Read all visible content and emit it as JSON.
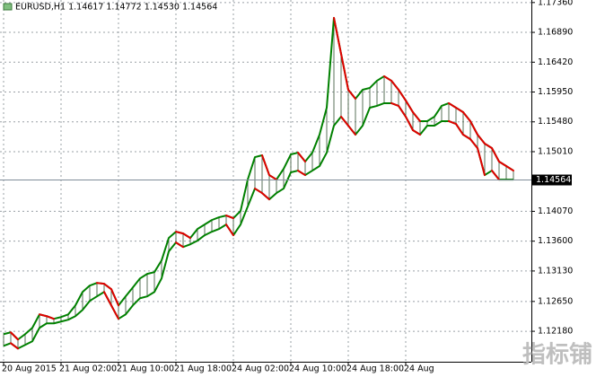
{
  "chart_data": {
    "type": "line",
    "title": "EURUSD,H1  1.14617 1.14772 1.14530 1.14564",
    "categories": [
      "20 Aug 2015",
      null,
      null,
      null,
      null,
      null,
      null,
      null,
      "21 Aug 02:00",
      null,
      null,
      null,
      null,
      null,
      null,
      null,
      "21 Aug 10:00",
      null,
      null,
      null,
      null,
      null,
      null,
      null,
      "21 Aug 18:00",
      null,
      null,
      null,
      null,
      null,
      null,
      null,
      "24 Aug 02:00",
      null,
      null,
      null,
      null,
      null,
      null,
      null,
      "24 Aug 10:00",
      null,
      null,
      null,
      null,
      null,
      null,
      null,
      "24 Aug 18:00",
      null,
      null,
      null,
      null,
      null,
      null,
      null,
      "24 Aug",
      null,
      null,
      null,
      null,
      null,
      null,
      null,
      null,
      null,
      null,
      null,
      null,
      null,
      null,
      null
    ],
    "series": [
      {
        "color": "#008000",
        "values": [
          1.12135,
          1.12163,
          1.1205,
          1.12135,
          1.12234,
          1.12446,
          1.12418,
          1.12376,
          1.12404,
          1.12446,
          1.12588,
          1.128,
          1.129,
          1.12942,
          1.12928,
          1.12843,
          1.12588,
          1.1273,
          1.12871,
          1.13013,
          1.13084,
          1.13112,
          1.13296,
          1.1365,
          1.13749,
          1.13721,
          1.1365,
          1.13792,
          1.13862,
          1.13933,
          1.13976,
          1.14004,
          1.13962,
          1.14075,
          1.1457,
          1.14924,
          1.14953,
          1.14641,
          1.1457,
          1.1474,
          1.14967,
          1.14995,
          1.14854,
          1.14995,
          1.15278,
          1.15703,
          1.17119,
          1.16553,
          1.15986,
          1.15845,
          1.15986,
          1.16015,
          1.16128,
          1.16199,
          1.16128,
          1.15986,
          1.15817,
          1.15632,
          1.15491,
          1.15491,
          1.15562,
          1.15732,
          1.15774,
          1.15703,
          1.15632,
          1.15491,
          1.15278,
          1.15137,
          1.15066,
          1.14854,
          1.14783,
          1.14712
        ]
      },
      {
        "color": "#008000",
        "values": [
          1.11951,
          1.11993,
          1.11908,
          1.11965,
          1.12022,
          1.12234,
          1.12305,
          1.12305,
          1.12333,
          1.12362,
          1.12418,
          1.12517,
          1.12659,
          1.1273,
          1.128,
          1.12588,
          1.12376,
          1.12446,
          1.12588,
          1.12701,
          1.1273,
          1.128,
          1.13013,
          1.13438,
          1.13579,
          1.13508,
          1.13551,
          1.13608,
          1.13693,
          1.13749,
          1.13792,
          1.13862,
          1.13693,
          1.13862,
          1.14146,
          1.14429,
          1.14358,
          1.14259,
          1.14358,
          1.14429,
          1.14684,
          1.14712,
          1.14641,
          1.14712,
          1.14783,
          1.14995,
          1.1542,
          1.15562,
          1.1542,
          1.15278,
          1.1542,
          1.15703,
          1.15732,
          1.15774,
          1.15774,
          1.15732,
          1.15562,
          1.15349,
          1.15278,
          1.1542,
          1.1542,
          1.15491,
          1.15491,
          1.15448,
          1.15278,
          1.15208,
          1.15066,
          1.14641,
          1.14712,
          1.1457,
          1.1457,
          1.1457
        ]
      }
    ],
    "down_color": "#e00000",
    "hatch_color": "#2f4f2f",
    "ylim": [
      1.117,
      1.174
    ],
    "yticks": [
      {
        "value": 1.1736,
        "label": "1.17360"
      },
      {
        "value": 1.1689,
        "label": "1.16890"
      },
      {
        "value": 1.1642,
        "label": "1.16420"
      },
      {
        "value": 1.1595,
        "label": "1.15950"
      },
      {
        "value": 1.1548,
        "label": "1.15480"
      },
      {
        "value": 1.1501,
        "label": "1.15010"
      },
      {
        "value": 1.1407,
        "label": "1.14070"
      },
      {
        "value": 1.136,
        "label": "1.13600"
      },
      {
        "value": 1.1313,
        "label": "1.13130"
      },
      {
        "value": 1.1265,
        "label": "1.12650"
      },
      {
        "value": 1.1218,
        "label": "1.12180"
      }
    ],
    "last_price": 1.14564,
    "grid": true,
    "watermark": "指标铺"
  }
}
